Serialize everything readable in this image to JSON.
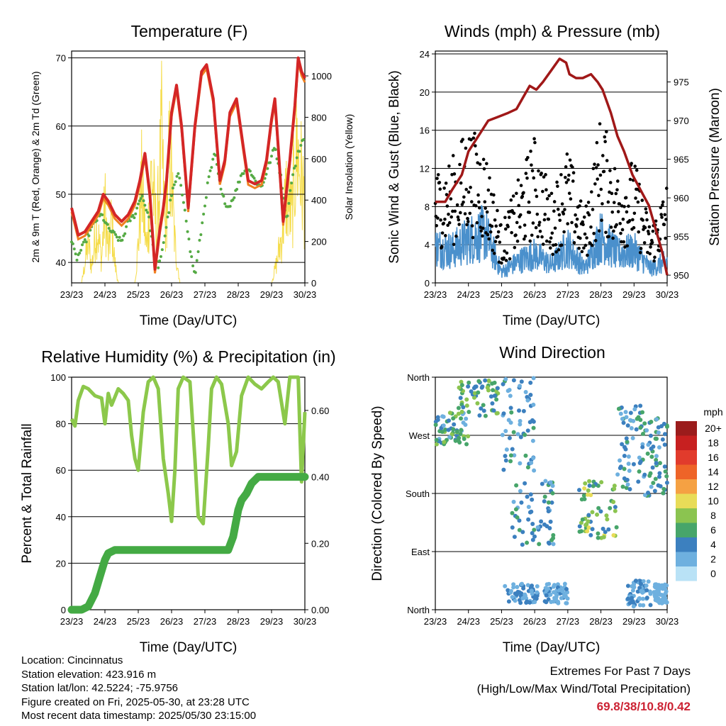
{
  "x_ticks": [
    "23/23",
    "24/23",
    "25/23",
    "26/23",
    "27/23",
    "28/23",
    "29/23",
    "30/23"
  ],
  "colors": {
    "temp_2m": "#d42626",
    "temp_9m": "#f08020",
    "dewpoint": "#55aa44",
    "solar": "#f5dc4a",
    "wind": "#4a90cc",
    "gust": "#000000",
    "pressure": "#a01818",
    "rh": "#8cc84b",
    "precip": "#44aa44",
    "extremes": "#cc2233"
  },
  "chart_data": [
    {
      "type": "line",
      "title": "Temperature (F)",
      "xlabel": "Time (Day/UTC)",
      "ylabel": "2m & 9m T (Red, Orange) & 2m Td (Green)",
      "y2label": "Solar Insolation (Yellow)",
      "ylim": [
        37,
        71
      ],
      "yticks": [
        40,
        50,
        60,
        70
      ],
      "y2lim": [
        0,
        1120
      ],
      "y2ticks": [
        0,
        200,
        400,
        600,
        800,
        1000
      ],
      "xlim": [
        0,
        7
      ],
      "grid": true,
      "series": [
        {
          "key": "temp",
          "x": [
            0,
            0.1,
            0.2,
            0.4,
            0.6,
            0.8,
            0.95,
            1.1,
            1.3,
            1.5,
            1.7,
            1.9,
            2.05,
            2.2,
            2.35,
            2.5,
            2.65,
            2.75,
            2.85,
            3.0,
            3.15,
            3.3,
            3.5,
            3.7,
            3.9,
            4.05,
            4.25,
            4.45,
            4.6,
            4.75,
            4.95,
            5.15,
            5.3,
            5.5,
            5.7,
            5.85,
            6.0,
            6.1,
            6.2,
            6.35,
            6.55,
            6.7,
            6.8,
            6.9,
            7.0
          ],
          "y": [
            48,
            46,
            44,
            44.5,
            46,
            47.5,
            50,
            49,
            47,
            46,
            47,
            49,
            52,
            56,
            50,
            39,
            45,
            48,
            52,
            62,
            66,
            60,
            48,
            60,
            68,
            69,
            64,
            52,
            55,
            62,
            64,
            57,
            52,
            51.5,
            52,
            55,
            61,
            64,
            57,
            46,
            55,
            63,
            70,
            68,
            67
          ]
        },
        {
          "key": "dew",
          "x": [
            0,
            0.15,
            0.3,
            0.5,
            0.7,
            0.9,
            1.1,
            1.3,
            1.5,
            1.7,
            1.9,
            2.1,
            2.3,
            2.45,
            2.6,
            2.8,
            3.0,
            3.2,
            3.4,
            3.55,
            3.7,
            3.9,
            4.1,
            4.3,
            4.5,
            4.7,
            4.9,
            5.1,
            5.3,
            5.5,
            5.7,
            5.9,
            6.1,
            6.3,
            6.45,
            6.6,
            6.8,
            7.0
          ],
          "y": [
            43,
            40.5,
            42,
            44,
            46,
            47,
            45,
            44,
            43,
            46,
            47,
            50,
            47,
            42,
            39,
            44,
            50,
            53,
            48,
            42,
            38,
            45,
            52,
            56,
            50,
            48,
            50,
            53,
            54,
            52,
            51,
            54,
            57,
            52,
            46,
            52,
            56,
            59
          ]
        },
        {
          "key": "solar",
          "x": [
            0,
            0.15,
            0.3,
            0.4,
            0.5,
            0.6,
            0.75,
            0.9,
            1.0,
            1.1,
            1.2,
            1.3,
            1.4,
            1.55,
            1.7,
            1.8,
            1.9,
            2.0,
            2.1,
            2.25,
            2.4,
            2.55,
            2.7,
            2.8,
            2.95,
            3.1,
            3.25,
            3.4,
            3.55,
            3.7,
            3.85,
            4.0,
            4.5,
            4.7,
            4.85,
            5.0,
            5.15,
            5.3,
            5.5,
            5.7,
            5.85,
            6.0,
            6.15,
            6.3,
            6.45,
            6.6,
            6.75,
            6.9,
            7.0
          ],
          "y": [
            0,
            0,
            0,
            150,
            320,
            120,
            450,
            180,
            600,
            220,
            480,
            150,
            0,
            0,
            0,
            0,
            0,
            300,
            750,
            250,
            860,
            380,
            1080,
            400,
            1000,
            300,
            0,
            0,
            0,
            0,
            0,
            0,
            0,
            0,
            0,
            0,
            0,
            0,
            0,
            0,
            0,
            0,
            150,
            350,
            700,
            500,
            1050,
            800,
            600
          ]
        }
      ]
    },
    {
      "type": "scatter",
      "title": "Winds (mph) & Pressure (mb)",
      "xlabel": "Time (Day/UTC)",
      "ylabel": "Sonic Wind & Gust (Blue, Black)",
      "y2label": "Station Pressure (Maroon)",
      "ylim": [
        0,
        24.3
      ],
      "yticks": [
        0,
        4,
        8,
        12,
        16,
        20,
        24
      ],
      "y2lim": [
        949,
        979
      ],
      "y2ticks": [
        950,
        955,
        960,
        965,
        970,
        975
      ],
      "xlim": [
        0,
        7
      ],
      "grid": true,
      "series": [
        {
          "key": "pressure",
          "x": [
            0,
            0.3,
            0.5,
            0.8,
            1.0,
            1.3,
            1.6,
            1.9,
            2.2,
            2.45,
            2.65,
            2.85,
            3.05,
            3.25,
            3.5,
            3.75,
            3.95,
            4.05,
            4.25,
            4.45,
            4.7,
            4.9,
            5.05,
            5.3,
            5.5,
            5.7,
            5.95,
            6.2,
            6.45,
            6.65,
            6.85,
            7.0
          ],
          "y": [
            959.5,
            959.5,
            961,
            963,
            966,
            968,
            970,
            970.5,
            971,
            971.5,
            973,
            974.5,
            974,
            975,
            976.5,
            978,
            977.5,
            976,
            975.5,
            975.5,
            976,
            975,
            974,
            971,
            968,
            966,
            963,
            961,
            959,
            956,
            953,
            950
          ]
        },
        {
          "key": "wind_envelope",
          "x": [
            0,
            0.5,
            1.0,
            1.5,
            2.0,
            2.5,
            3.0,
            3.5,
            4.0,
            4.5,
            5.0,
            5.5,
            6.0,
            6.5,
            7.0
          ],
          "y": [
            5,
            4.5,
            6,
            7,
            1.5,
            3,
            4,
            2.5,
            5,
            2,
            6.5,
            4,
            4.5,
            2,
            3
          ]
        },
        {
          "key": "gust_envelope",
          "x": [
            0,
            0.5,
            1.0,
            1.5,
            2.0,
            2.5,
            3.0,
            3.5,
            4.0,
            4.5,
            5.0,
            5.5,
            6.0,
            6.5,
            7.0
          ],
          "y": [
            10,
            11,
            14,
            12,
            5,
            9,
            13,
            8,
            12,
            6,
            15,
            10,
            11,
            5,
            9
          ]
        }
      ]
    },
    {
      "type": "line",
      "title": "Relative Humidity (%) & Precipitation (in)",
      "xlabel": "Time (Day/UTC)",
      "ylabel": "Percent & Total Rainfall",
      "ylim": [
        0,
        100
      ],
      "yticks": [
        0,
        20,
        40,
        60,
        80,
        100
      ],
      "y2lim": [
        0,
        0.7
      ],
      "y2ticks": [
        "0.00",
        "0.20",
        "0.40",
        "0.60"
      ],
      "xlim": [
        0,
        7
      ],
      "grid": true,
      "series": [
        {
          "key": "rh",
          "x": [
            0,
            0.1,
            0.2,
            0.35,
            0.5,
            0.7,
            0.9,
            1.0,
            1.1,
            1.2,
            1.4,
            1.55,
            1.7,
            1.8,
            1.9,
            2.0,
            2.15,
            2.3,
            2.45,
            2.6,
            2.75,
            2.9,
            3.0,
            3.1,
            3.2,
            3.35,
            3.55,
            3.7,
            3.8,
            3.95,
            4.1,
            4.2,
            4.35,
            4.5,
            4.7,
            4.8,
            4.95,
            5.1,
            5.3,
            5.5,
            5.7,
            5.9,
            6.05,
            6.2,
            6.4,
            6.55,
            6.7,
            6.8,
            6.9,
            7.0
          ],
          "y": [
            82,
            79,
            90,
            96,
            95,
            92,
            91,
            80,
            93,
            88,
            95,
            93,
            90,
            75,
            65,
            60,
            85,
            98,
            100,
            95,
            65,
            50,
            38,
            60,
            95,
            100,
            98,
            65,
            40,
            37,
            70,
            95,
            100,
            97,
            80,
            62,
            68,
            92,
            100,
            97,
            95,
            98,
            100,
            98,
            80,
            100,
            100,
            100,
            55,
            85
          ]
        },
        {
          "key": "precip",
          "x": [
            0,
            0.3,
            0.5,
            0.7,
            0.85,
            1.0,
            1.1,
            1.3,
            1.6,
            2.0,
            3.0,
            4.0,
            4.7,
            4.85,
            5.0,
            5.1,
            5.25,
            5.4,
            5.6,
            5.8,
            6.0,
            6.5,
            7.0
          ],
          "y": [
            0,
            0,
            0.01,
            0.05,
            0.1,
            0.15,
            0.17,
            0.18,
            0.18,
            0.18,
            0.18,
            0.18,
            0.18,
            0.22,
            0.3,
            0.33,
            0.35,
            0.38,
            0.4,
            0.4,
            0.4,
            0.4,
            0.4
          ]
        }
      ]
    },
    {
      "type": "scatter",
      "title": "Wind Direction",
      "xlabel": "Time (Day/UTC)",
      "ylabel": "Direction (Colored By Speed)",
      "ylim": [
        0,
        360
      ],
      "ycategories": [
        "North",
        "East",
        "South",
        "West",
        "North"
      ],
      "yticks": [
        0,
        90,
        180,
        270,
        360
      ],
      "xlim": [
        0,
        7
      ],
      "legend_title": "mph",
      "legend_labels": [
        "20+",
        "18",
        "16",
        "14",
        "12",
        "10",
        "8",
        "6",
        "4",
        "2",
        "0"
      ],
      "legend_colors": [
        "#9b1c1c",
        "#c72020",
        "#e13b2c",
        "#ee6428",
        "#f5a143",
        "#e8dc58",
        "#8bc450",
        "#47a56a",
        "#3c80bf",
        "#6eb0df",
        "#b9e2f6"
      ],
      "legend_position": "right",
      "clusters": [
        {
          "x": [
            0,
            1
          ],
          "dir": [
            255,
            305
          ],
          "speed": [
            2,
            8
          ]
        },
        {
          "x": [
            0.7,
            1.9
          ],
          "dir": [
            300,
            355
          ],
          "speed": [
            3,
            9
          ]
        },
        {
          "x": [
            2.0,
            3.0
          ],
          "dir": [
            215,
            360
          ],
          "speed": [
            1,
            6
          ]
        },
        {
          "x": [
            2.1,
            3.1
          ],
          "dir": [
            10,
            40
          ],
          "speed": [
            1,
            5
          ]
        },
        {
          "x": [
            2.3,
            3.6
          ],
          "dir": [
            100,
            200
          ],
          "speed": [
            2,
            6
          ]
        },
        {
          "x": [
            3.3,
            4.0
          ],
          "dir": [
            10,
            40
          ],
          "speed": [
            1,
            4
          ]
        },
        {
          "x": [
            4.3,
            5.5
          ],
          "dir": [
            110,
            200
          ],
          "speed": [
            3,
            10
          ]
        },
        {
          "x": [
            5.5,
            6.3
          ],
          "dir": [
            180,
            320
          ],
          "speed": [
            2,
            7
          ]
        },
        {
          "x": [
            5.8,
            6.5
          ],
          "dir": [
            5,
            45
          ],
          "speed": [
            1,
            4
          ]
        },
        {
          "x": [
            6.3,
            7.0
          ],
          "dir": [
            170,
            300
          ],
          "speed": [
            2,
            7
          ]
        },
        {
          "x": [
            6.6,
            7.0
          ],
          "dir": [
            10,
            40
          ],
          "speed": [
            1,
            3
          ]
        }
      ]
    }
  ],
  "info": {
    "location": "Location: Cincinnatus",
    "elevation": "Station elevation: 423.916 m",
    "latlon": "Station lat/lon: 42.5224; -75.9756",
    "created": "Figure created on Fri, 2025-05-30, at 23:28 UTC",
    "timestamp": "Most recent data timestamp: 2025/05/30 23:15:00"
  },
  "extremes": {
    "title": "Extremes For Past 7 Days",
    "subtitle": "(High/Low/Max Wind/Total Precipitation)",
    "values": "69.8/38/10.8/0.42"
  }
}
